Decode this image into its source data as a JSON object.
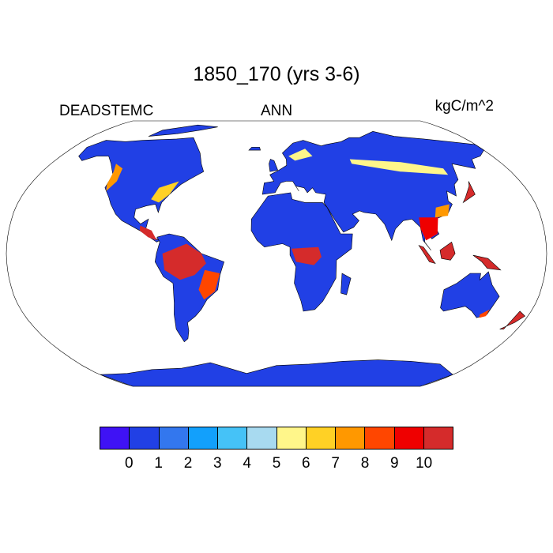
{
  "title": "1850_170 (yrs 3-6)",
  "left_label": "DEADSTEMC",
  "center_label": "ANN",
  "right_label": "kgC/m^2",
  "projection": "Robinson",
  "colorbar": {
    "levels": [
      "0",
      "1",
      "2",
      "3",
      "4",
      "5",
      "6",
      "7",
      "8",
      "9",
      "10"
    ],
    "colors": [
      "#3f12f5",
      "#2140e5",
      "#3377ee",
      "#12a0fc",
      "#45c2f7",
      "#a8daf0",
      "#fff68a",
      "#ffd125",
      "#ff9800",
      "#ff4600",
      "#ef0000",
      "#d52b2b"
    ]
  }
}
